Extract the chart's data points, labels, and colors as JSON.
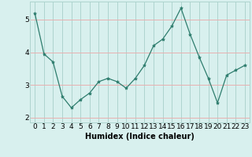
{
  "x": [
    0,
    1,
    2,
    3,
    4,
    5,
    6,
    7,
    8,
    9,
    10,
    11,
    12,
    13,
    14,
    15,
    16,
    17,
    18,
    19,
    20,
    21,
    22,
    23
  ],
  "y": [
    5.2,
    3.95,
    3.7,
    2.65,
    2.3,
    2.55,
    2.75,
    3.1,
    3.2,
    3.1,
    2.9,
    3.2,
    3.6,
    4.2,
    4.4,
    4.8,
    5.35,
    4.55,
    3.85,
    3.2,
    2.45,
    3.3,
    3.45,
    3.6
  ],
  "line_color": "#2e7d6e",
  "marker": "*",
  "marker_size": 3,
  "bg_color": "#d8f0ee",
  "grid_color": "#aed4cf",
  "grid_red_color": "#e8b0b0",
  "xlabel": "Humidex (Indice chaleur)",
  "xlim": [
    -0.5,
    23.5
  ],
  "ylim": [
    1.85,
    5.55
  ],
  "yticks": [
    2,
    3,
    4,
    5
  ],
  "xlabel_fontsize": 7,
  "tick_fontsize": 6.5
}
